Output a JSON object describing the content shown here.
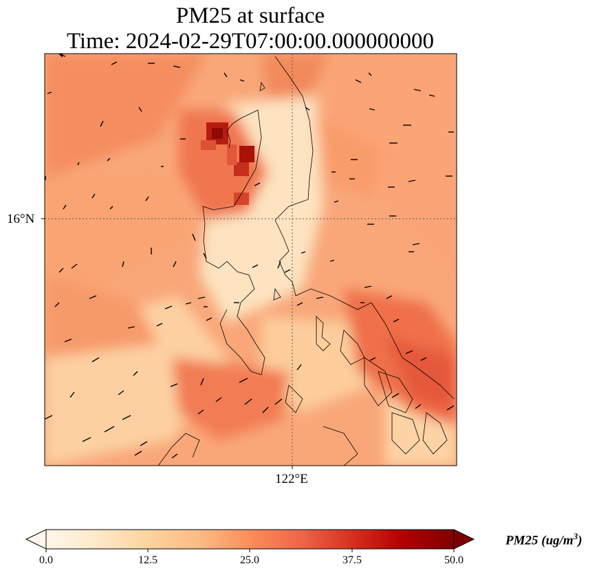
{
  "title": {
    "line1": "PM25 at surface",
    "line2": "Time: 2024-02-29T07:00:00.000000000"
  },
  "map": {
    "lat_label": "16°N",
    "lon_label": "122°E",
    "field": "PM25",
    "colormap": "OrRd",
    "gridlines": "dotted",
    "coastline_color": "#000000",
    "wind_vectors": true
  },
  "colorbar": {
    "label_base": "PM25 (ug/m",
    "label_exp": "3",
    "label_close": ")",
    "min": 0.0,
    "max": 50.0,
    "ticks": [
      "0.0",
      "12.5",
      "25.0",
      "37.5",
      "50.0"
    ],
    "extend": "both",
    "colors": [
      "#fff7ec",
      "#fee8c8",
      "#fdd49e",
      "#fdbb84",
      "#fc8d59",
      "#ef6548",
      "#d7301f",
      "#b30000",
      "#7f0000"
    ]
  }
}
